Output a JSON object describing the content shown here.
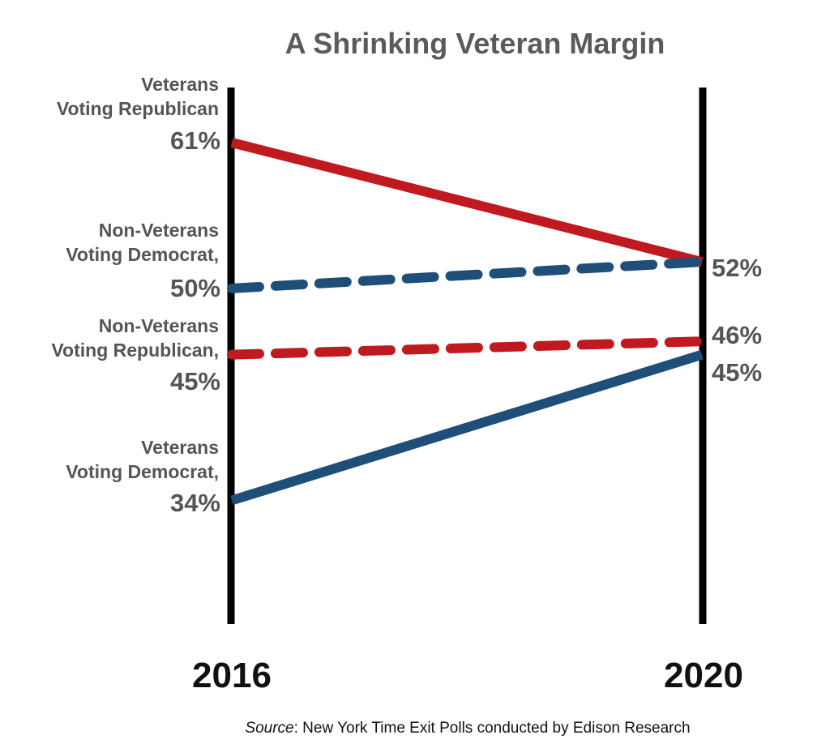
{
  "chart_data": {
    "type": "line",
    "title": "A Shrinking Veteran Margin",
    "categories": [
      "2016",
      "2020"
    ],
    "series": [
      {
        "id": "vet_rep",
        "label_lines": [
          "Veterans",
          "Voting Republican"
        ],
        "values": [
          61,
          52
        ],
        "value_labels": [
          "61%",
          "52%"
        ],
        "color": "#c0191f",
        "dashed": false
      },
      {
        "id": "nonvet_dem",
        "label_lines": [
          "Non-Veterans",
          "Voting Democrat,"
        ],
        "values": [
          50,
          52
        ],
        "value_labels": [
          "50%",
          "52%"
        ],
        "color": "#1f4e79",
        "dashed": true
      },
      {
        "id": "nonvet_rep",
        "label_lines": [
          "Non-Veterans",
          "Voting Republican,"
        ],
        "values": [
          45,
          46
        ],
        "value_labels": [
          "45%",
          "46%"
        ],
        "color": "#c0191f",
        "dashed": true
      },
      {
        "id": "vet_dem",
        "label_lines": [
          "Veterans",
          "Voting Democrat,"
        ],
        "values": [
          34,
          45
        ],
        "value_labels": [
          "34%",
          "45%"
        ],
        "color": "#1f4e79",
        "dashed": false
      }
    ],
    "axis_color": "#000000",
    "grid": false,
    "legend": "none"
  },
  "source": {
    "prefix": "Source",
    "text": ": New York Time Exit Polls conducted by Edison Research"
  }
}
